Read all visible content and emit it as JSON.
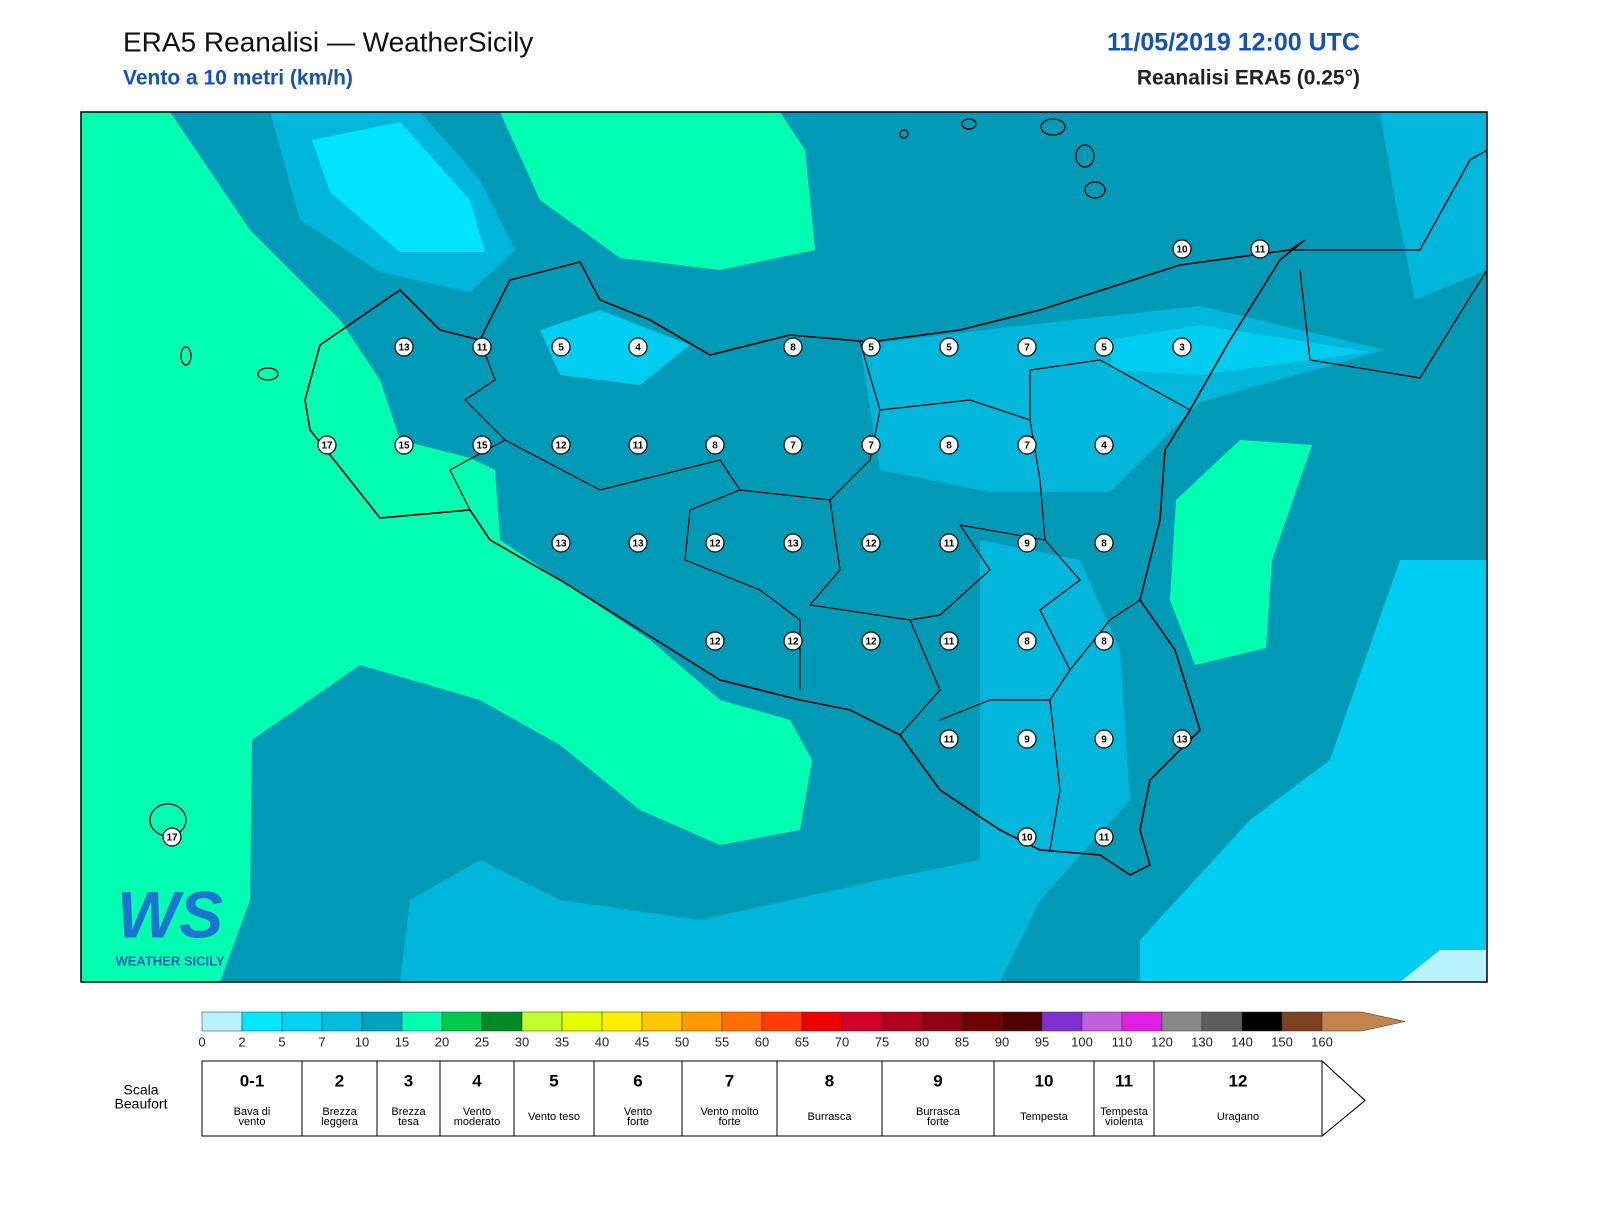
{
  "header": {
    "title": "ERA5 Reanalisi — WeatherSicily",
    "subtitle": "Vento a 10 metri (km/h)",
    "date": "11/05/2019 12:00 UTC",
    "source": "Reanalisi ERA5 (0.25°)"
  },
  "map": {
    "stations": [
      13,
      11,
      5,
      4,
      8,
      5,
      5,
      7,
      5,
      3,
      10,
      11,
      17,
      15,
      15,
      12,
      11,
      8,
      7,
      7,
      8,
      7,
      4,
      13,
      13,
      12,
      13,
      12,
      11,
      9,
      8,
      12,
      12,
      12,
      11,
      8,
      8,
      11,
      9,
      9,
      13,
      10,
      11,
      17
    ]
  },
  "logo": {
    "mark": "WS",
    "text": "WEATHER SICILY"
  },
  "colorbar": {
    "ticks": [
      0,
      2,
      5,
      7,
      10,
      15,
      20,
      25,
      30,
      35,
      40,
      45,
      50,
      55,
      60,
      65,
      70,
      75,
      80,
      85,
      90,
      95,
      100,
      110,
      120,
      130,
      140,
      150,
      160
    ],
    "colors": [
      "#b8f2ff",
      "#00e6ff",
      "#00d2f2",
      "#00bddf",
      "#00a2c0",
      "#00ffb0",
      "#00c848",
      "#008a26",
      "#c2ff30",
      "#e4ff00",
      "#ffee00",
      "#ffc800",
      "#ff9a00",
      "#ff7000",
      "#ff3c00",
      "#ee0000",
      "#d0002a",
      "#b00020",
      "#900014",
      "#700000",
      "#500000",
      "#7e30d2",
      "#c060e0",
      "#e020e0",
      "#888888",
      "#5e5e5e",
      "#000000",
      "#7e4222",
      "#c4834a"
    ]
  },
  "beaufort": {
    "label": [
      "Scala",
      "Beaufort"
    ],
    "levels": [
      {
        "force": "0-1",
        "desc": [
          "Bava di",
          "vento"
        ]
      },
      {
        "force": "2",
        "desc": [
          "Brezza",
          "leggera"
        ]
      },
      {
        "force": "3",
        "desc": [
          "Brezza",
          "tesa"
        ]
      },
      {
        "force": "4",
        "desc": [
          "Vento",
          "moderato"
        ]
      },
      {
        "force": "5",
        "desc": [
          "Vento teso"
        ]
      },
      {
        "force": "6",
        "desc": [
          "Vento",
          "forte"
        ]
      },
      {
        "force": "7",
        "desc": [
          "Vento molto",
          "forte"
        ]
      },
      {
        "force": "8",
        "desc": [
          "Burrasca"
        ]
      },
      {
        "force": "9",
        "desc": [
          "Burrasca",
          "forte"
        ]
      },
      {
        "force": "10",
        "desc": [
          "Tempesta"
        ]
      },
      {
        "force": "11",
        "desc": [
          "Tempesta",
          "violenta"
        ]
      },
      {
        "force": "12",
        "desc": [
          "Uragano"
        ]
      }
    ]
  }
}
